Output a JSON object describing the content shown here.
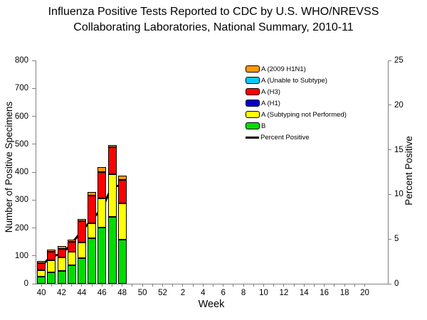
{
  "title": {
    "line1": "Influenza Positive Tests Reported to CDC by U.S. WHO/NREVSS",
    "line2": "Collaborating Laboratories, National Summary, 2010-11"
  },
  "chart_data": {
    "type": "bar",
    "subtype": "stacked-bars-with-percent-line",
    "title": "Influenza Positive Tests Reported to CDC by U.S. WHO/NREVSS Collaborating Laboratories, National Summary, 2010-11",
    "xlabel": "Week",
    "ylabel_left": "Number of Positive Specimens",
    "ylabel_right": "Percent Positive",
    "ylim_left": [
      0,
      800
    ],
    "yticks_left": [
      0,
      100,
      200,
      300,
      400,
      500,
      600,
      700,
      800
    ],
    "ylim_right": [
      0,
      25
    ],
    "yticks_right": [
      0,
      5,
      10,
      15,
      20,
      25
    ],
    "week_axis": [
      "40",
      "41",
      "42",
      "43",
      "44",
      "45",
      "46",
      "47",
      "48",
      "49",
      "50",
      "51",
      "52",
      "1",
      "2",
      "3",
      "4",
      "5",
      "6",
      "7",
      "8",
      "9",
      "10",
      "11",
      "12",
      "13",
      "14",
      "15",
      "16",
      "17",
      "18",
      "19",
      "20"
    ],
    "x_labeled_ticks": [
      "40",
      "42",
      "44",
      "46",
      "48",
      "50",
      "52",
      "2",
      "4",
      "6",
      "8",
      "10",
      "12",
      "14",
      "16",
      "18",
      "20"
    ],
    "data_weeks": [
      "40",
      "41",
      "42",
      "43",
      "44",
      "45",
      "46",
      "47",
      "48"
    ],
    "stack_series": [
      {
        "name": "B",
        "color": "#00DD00",
        "values": [
          25,
          41,
          47,
          66,
          92,
          164,
          202,
          240,
          159
        ]
      },
      {
        "name": "A (Subtyping not Performed)",
        "color": "#FFFF00",
        "values": [
          24,
          44,
          48,
          49,
          55,
          52,
          103,
          153,
          128
        ]
      },
      {
        "name": "A (H1)",
        "color": "#0000CC",
        "values": [
          0,
          0,
          0,
          0,
          0,
          0,
          0,
          0,
          0
        ]
      },
      {
        "name": "A (H3)",
        "color": "#FF0000",
        "values": [
          24,
          30,
          30,
          36,
          76,
          100,
          96,
          96,
          85
        ]
      },
      {
        "name": "A (Unable to Subtype)",
        "color": "#00CCFF",
        "values": [
          0,
          0,
          0,
          0,
          0,
          0,
          0,
          0,
          0
        ]
      },
      {
        "name": "A (2009 H1N1)",
        "color": "#FF9900",
        "values": [
          9,
          8,
          9,
          8,
          9,
          12,
          17,
          9,
          16
        ]
      }
    ],
    "bar_totals": [
      82,
      123,
      134,
      159,
      232,
      328,
      418,
      498,
      388
    ],
    "line_series": {
      "name": "Percent Positive",
      "color": "#000000",
      "values": [
        2.0,
        3.1,
        3.3,
        4.5,
        5.9,
        7.2,
        8.4,
        10.9,
        11.0
      ]
    },
    "legend": [
      {
        "label": "A (2009 H1N1)",
        "color": "#FF9900",
        "type": "box"
      },
      {
        "label": "A (Unable to Subtype)",
        "color": "#00CCFF",
        "type": "box"
      },
      {
        "label": "A (H3)",
        "color": "#FF0000",
        "type": "box"
      },
      {
        "label": "A (H1)",
        "color": "#0000CC",
        "type": "box"
      },
      {
        "label": "A (Subtyping not Performed)",
        "color": "#FFFF00",
        "type": "box"
      },
      {
        "label": "B",
        "color": "#00DD00",
        "type": "box"
      },
      {
        "label": "Percent Positive",
        "color": "#000000",
        "type": "line"
      }
    ],
    "layout": {
      "grid": false,
      "legend_position": "upper-middle-right-inside"
    }
  }
}
